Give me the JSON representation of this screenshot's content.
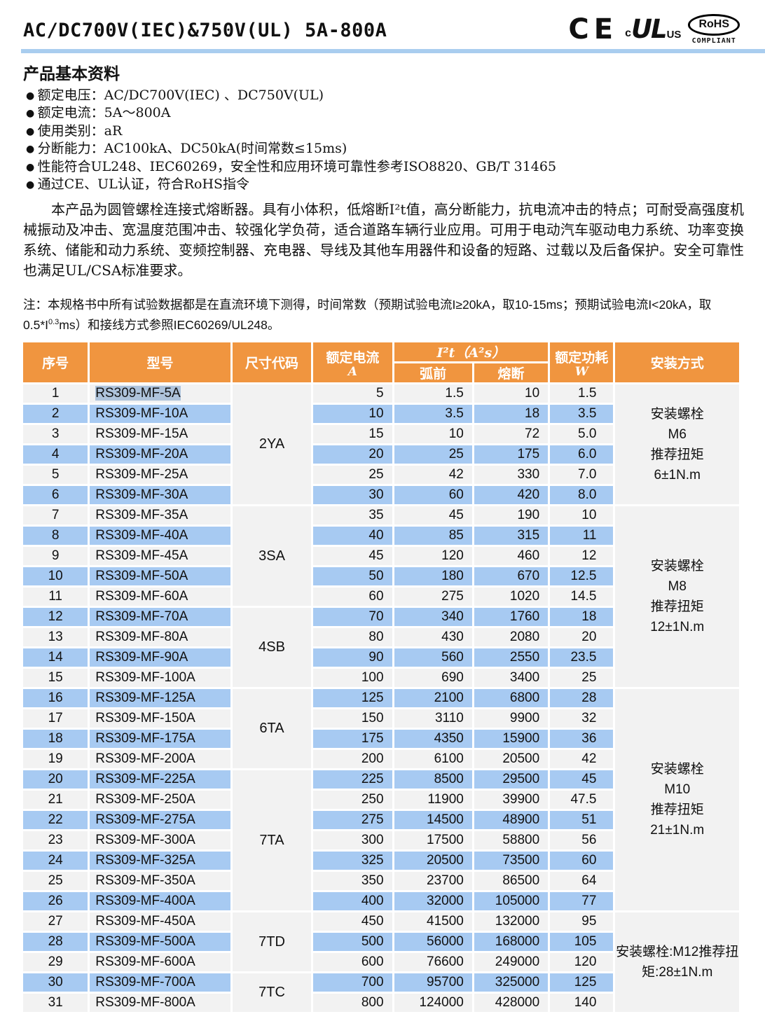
{
  "header": {
    "title": "AC/DC700V(IEC)&750V(UL) 5A-800A",
    "marks": {
      "ce": "CE",
      "cul_c": "c",
      "cul_ul": "UL",
      "cul_us": "US",
      "rohs": "RoHS",
      "rohs_sub": "COMPLIANT"
    }
  },
  "basic_info": {
    "heading": "产品基本资料",
    "bullets": [
      "额定电压：AC/DC700V(IEC) 、DC750V(UL)",
      "额定电流：5A～800A",
      "使用类别：aR",
      "分断能力：AC100kA、DC50kA(时间常数≤15ms)",
      "性能符合UL248、IEC60269，安全性和应用环境可靠性参考ISO8820、GB/T 31465",
      "通过CE、UL认证，符合RoHS指令"
    ],
    "description": "本产品为圆管螺栓连接式熔断器。具有小体积，低熔断I²t值，高分断能力，抗电流冲击的特点；可耐受高强度机械振动及冲击、宽温度范围冲击、较强化学负荷，适合道路车辆行业应用。可用于电动汽车驱动电力系统、功率变换系统、储能和动力系统、变频控制器、充电器、导线及其他车用器件和设备的短路、过载以及后备保护。安全可靠性也满足UL/CSA标准要求。"
  },
  "note": {
    "part1": "注：本规格书中所有试验数据都是在直流环境下测得，时间常数（预期试验电流I≥20kA，取10-15ms；预期试验电流I<20kA，取0.5*I",
    "superscript": "0.3",
    "part2": "ms）和接线方式参照IEC60269/UL248。"
  },
  "table": {
    "headers": {
      "seq": "序号",
      "model": "型号",
      "size": "尺寸代码",
      "current": "额定电流",
      "current_unit": "A",
      "i2t": "I²t（A²s）",
      "prearc": "弧前",
      "melt": "熔断",
      "power": "额定功耗",
      "power_unit": "W",
      "mount": "安装方式"
    },
    "selection": {
      "row": 1,
      "column": "model"
    },
    "rows": [
      [
        "1",
        "RS309-MF-5A",
        "5",
        "1.5",
        "10",
        "1.5"
      ],
      [
        "2",
        "RS309-MF-10A",
        "10",
        "3.5",
        "18",
        "3.5"
      ],
      [
        "3",
        "RS309-MF-15A",
        "15",
        "10",
        "72",
        "5.0"
      ],
      [
        "4",
        "RS309-MF-20A",
        "20",
        "25",
        "175",
        "6.0"
      ],
      [
        "5",
        "RS309-MF-25A",
        "25",
        "42",
        "330",
        "7.0"
      ],
      [
        "6",
        "RS309-MF-30A",
        "30",
        "60",
        "420",
        "8.0"
      ],
      [
        "7",
        "RS309-MF-35A",
        "35",
        "45",
        "190",
        "10"
      ],
      [
        "8",
        "RS309-MF-40A",
        "40",
        "85",
        "315",
        "11"
      ],
      [
        "9",
        "RS309-MF-45A",
        "45",
        "120",
        "460",
        "12"
      ],
      [
        "10",
        "RS309-MF-50A",
        "50",
        "180",
        "670",
        "12.5"
      ],
      [
        "11",
        "RS309-MF-60A",
        "60",
        "275",
        "1020",
        "14.5"
      ],
      [
        "12",
        "RS309-MF-70A",
        "70",
        "340",
        "1760",
        "18"
      ],
      [
        "13",
        "RS309-MF-80A",
        "80",
        "430",
        "2080",
        "20"
      ],
      [
        "14",
        "RS309-MF-90A",
        "90",
        "560",
        "2550",
        "23.5"
      ],
      [
        "15",
        "RS309-MF-100A",
        "100",
        "690",
        "3400",
        "25"
      ],
      [
        "16",
        "RS309-MF-125A",
        "125",
        "2100",
        "6800",
        "28"
      ],
      [
        "17",
        "RS309-MF-150A",
        "150",
        "3110",
        "9900",
        "32"
      ],
      [
        "18",
        "RS309-MF-175A",
        "175",
        "4350",
        "15900",
        "36"
      ],
      [
        "19",
        "RS309-MF-200A",
        "200",
        "6100",
        "20500",
        "42"
      ],
      [
        "20",
        "RS309-MF-225A",
        "225",
        "8500",
        "29500",
        "45"
      ],
      [
        "21",
        "RS309-MF-250A",
        "250",
        "11900",
        "39900",
        "47.5"
      ],
      [
        "22",
        "RS309-MF-275A",
        "275",
        "14500",
        "48900",
        "51"
      ],
      [
        "23",
        "RS309-MF-300A",
        "300",
        "17500",
        "58800",
        "56"
      ],
      [
        "24",
        "RS309-MF-325A",
        "325",
        "20500",
        "73500",
        "60"
      ],
      [
        "25",
        "RS309-MF-350A",
        "350",
        "23700",
        "86500",
        "64"
      ],
      [
        "26",
        "RS309-MF-400A",
        "400",
        "32000",
        "105000",
        "77"
      ],
      [
        "27",
        "RS309-MF-450A",
        "450",
        "41500",
        "132000",
        "95"
      ],
      [
        "28",
        "RS309-MF-500A",
        "500",
        "56000",
        "168000",
        "105"
      ],
      [
        "29",
        "RS309-MF-600A",
        "600",
        "76600",
        "249000",
        "120"
      ],
      [
        "30",
        "RS309-MF-700A",
        "700",
        "95700",
        "325000",
        "125"
      ],
      [
        "31",
        "RS309-MF-800A",
        "800",
        "124000",
        "428000",
        "140"
      ]
    ],
    "size_groups": [
      {
        "code": "2YA",
        "start": 1,
        "end": 6
      },
      {
        "code": "3SA",
        "start": 7,
        "end": 11
      },
      {
        "code": "4SB",
        "start": 12,
        "end": 15
      },
      {
        "code": "6TA",
        "start": 16,
        "end": 19
      },
      {
        "code": "7TA",
        "start": 20,
        "end": 26
      },
      {
        "code": "7TD",
        "start": 27,
        "end": 29
      },
      {
        "code": "7TC",
        "start": 30,
        "end": 31
      }
    ],
    "mount_groups": [
      {
        "text": "安装螺栓\nM6\n推荐扭矩\n6±1N.m",
        "start": 1,
        "end": 6
      },
      {
        "text": "安装螺栓\nM8\n推荐扭矩\n12±1N.m",
        "start": 7,
        "end": 15
      },
      {
        "text": "安装螺栓\nM10\n推荐扭矩\n21±1N.m",
        "start": 16,
        "end": 26
      },
      {
        "text": "安装螺栓:M12推荐扭矩:28±1N.m",
        "start": 27,
        "end": 31
      }
    ]
  },
  "colors": {
    "header_orange": "#F0953F",
    "row_blue": "#A7CAF2",
    "row_light": "#F2F2F2",
    "divider_blue": "#A9CDEF",
    "selection_highlight": "#AEC3DB"
  }
}
